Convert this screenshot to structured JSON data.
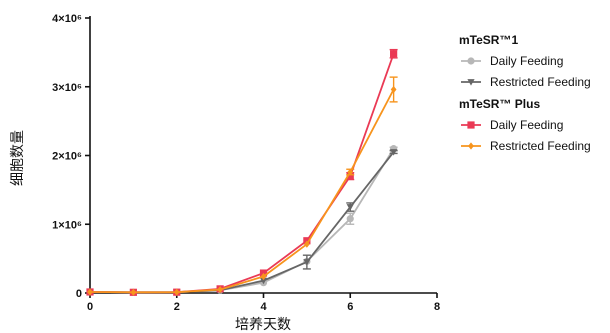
{
  "chart_data": {
    "type": "line",
    "title": "",
    "xlabel": "培养天数",
    "ylabel": "细胞数量",
    "xlim": [
      0,
      8
    ],
    "ylim": [
      0,
      4000000
    ],
    "x_ticks": [
      0,
      2,
      4,
      6,
      8
    ],
    "x_tick_labels": [
      "0",
      "2",
      "4",
      "6",
      "8"
    ],
    "y_ticks": [
      0,
      1000000,
      2000000,
      3000000,
      4000000
    ],
    "y_tick_labels": [
      "0",
      "1×10⁶",
      "2×10⁶",
      "3×10⁶",
      "4×10⁶"
    ],
    "grid": false,
    "legend_position": "right",
    "x": [
      0,
      1,
      2,
      3,
      4,
      5,
      6,
      7
    ],
    "legend_groups": [
      {
        "title": "mTeSR™1",
        "series_indices": [
          0,
          1
        ]
      },
      {
        "title": "mTeSR™ Plus",
        "series_indices": [
          2,
          3
        ]
      }
    ],
    "series": [
      {
        "name": "Daily Feeding",
        "group": "mTeSR™1",
        "color": "#b7b7b7",
        "marker": "circle",
        "values": [
          15000,
          10000,
          12000,
          40000,
          150000,
          460000,
          1080000,
          2100000
        ],
        "errors": [
          0,
          0,
          0,
          0,
          0,
          0,
          80000,
          20000
        ]
      },
      {
        "name": "Restricted Feeding",
        "group": "mTeSR™1",
        "color": "#666666",
        "marker": "triangle-down",
        "values": [
          15000,
          10000,
          12000,
          40000,
          180000,
          450000,
          1250000,
          2050000
        ],
        "errors": [
          0,
          0,
          0,
          0,
          0,
          100000,
          60000,
          20000
        ]
      },
      {
        "name": "Daily Feeding",
        "group": "mTeSR™ Plus",
        "color": "#ea3a55",
        "marker": "square",
        "values": [
          15000,
          10000,
          12000,
          60000,
          290000,
          760000,
          1700000,
          3480000
        ],
        "errors": [
          0,
          0,
          0,
          0,
          0,
          0,
          50000,
          60000
        ]
      },
      {
        "name": "Restricted Feeding",
        "group": "mTeSR™ Plus",
        "color": "#f7941d",
        "marker": "diamond",
        "values": [
          15000,
          10000,
          12000,
          50000,
          240000,
          710000,
          1760000,
          2960000
        ],
        "errors": [
          0,
          0,
          0,
          0,
          0,
          0,
          40000,
          180000
        ]
      }
    ]
  }
}
